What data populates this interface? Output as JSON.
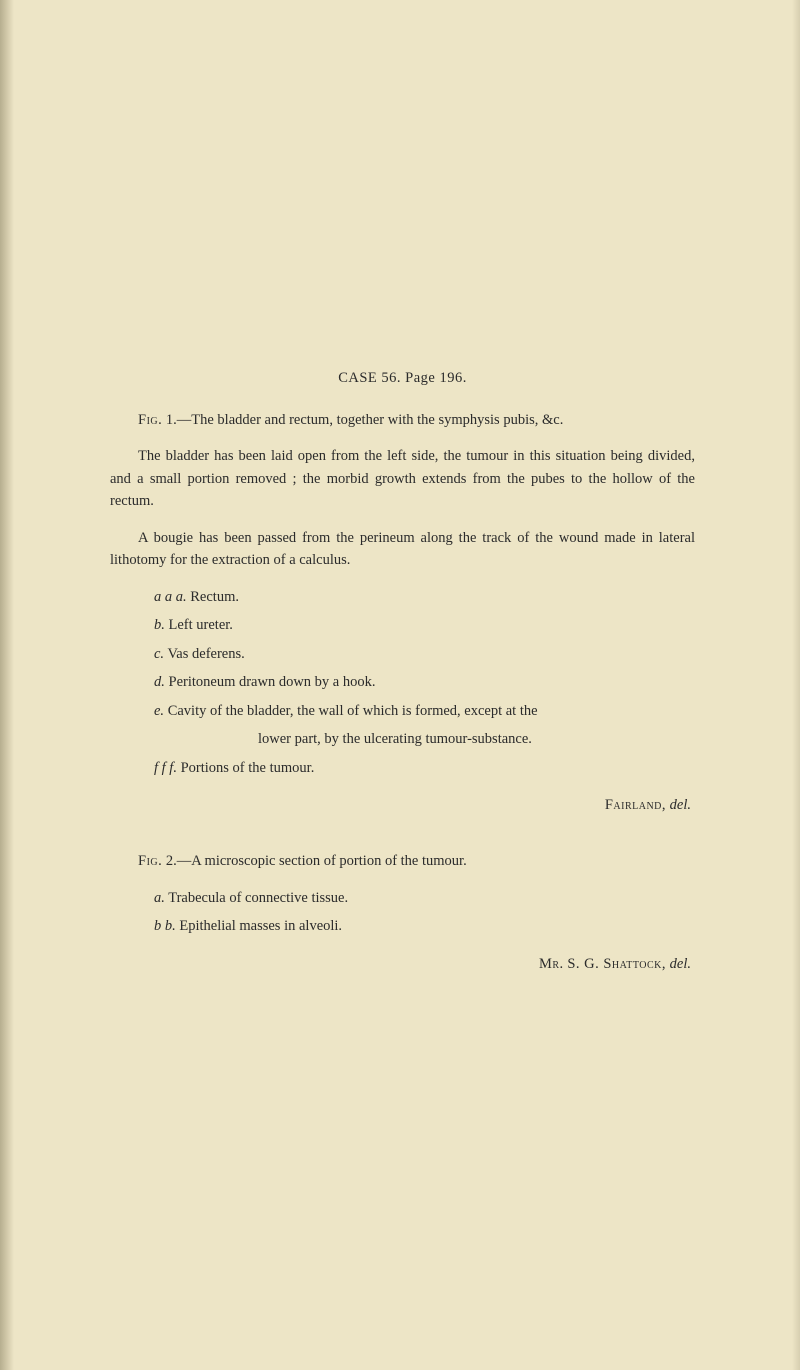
{
  "case_header": "CASE 56.  Page 196.",
  "fig1": {
    "label": "Fig.",
    "num": "1.",
    "text": "—The bladder and rectum, together with the symphysis pubis, &c."
  },
  "para1": "The bladder has been laid open from the left side, the tumour in this situation being divided, and a small portion removed ; the morbid growth extends from the pubes to the hollow of the rectum.",
  "para2": "A bougie has been passed from the perineum along the track of the wound made in lateral lithotomy for the extraction of a calculus.",
  "defs1": [
    {
      "key": "a a a.",
      "val": "Rectum."
    },
    {
      "key": "b.",
      "val": "Left ureter."
    },
    {
      "key": "c.",
      "val": "Vas deferens."
    },
    {
      "key": "d.",
      "val": "Peritoneum drawn down by a hook."
    },
    {
      "key": "e.",
      "val": "Cavity of the bladder, the wall of which is formed, except at the"
    },
    {
      "key": "f f f.",
      "val": "Portions of the tumour."
    }
  ],
  "def_e_cont": "lower part, by the ulcerating tumour-substance.",
  "attrib1": {
    "name": "Fairland,",
    "suffix": "del."
  },
  "fig2": {
    "label": "Fig.",
    "num": "2.",
    "text": "—A microscopic section of portion of the tumour."
  },
  "defs2": [
    {
      "key": "a.",
      "val": "Trabecula of connective tissue."
    },
    {
      "key": "b b.",
      "val": "Epithelial masses in alveoli."
    }
  ],
  "attrib2": {
    "prefix": "Mr.",
    "name": "S. G. Shattock,",
    "suffix": "del."
  }
}
